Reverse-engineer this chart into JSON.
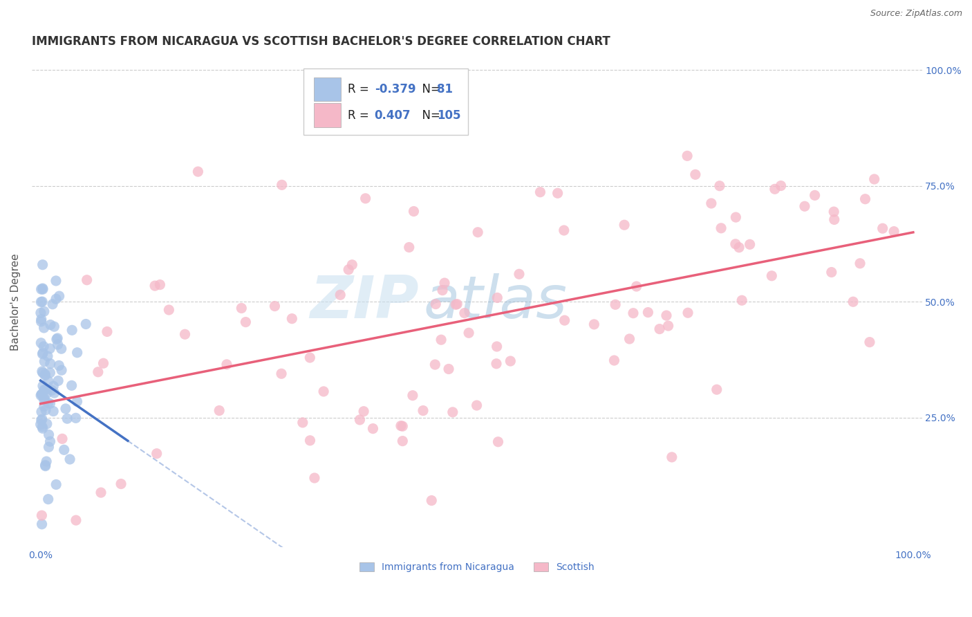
{
  "title": "IMMIGRANTS FROM NICARAGUA VS SCOTTISH BACHELOR'S DEGREE CORRELATION CHART",
  "source": "Source: ZipAtlas.com",
  "ylabel": "Bachelor's Degree",
  "watermark_zip": "ZIP",
  "watermark_atlas": "atlas",
  "xlim": [
    0.0,
    100.0
  ],
  "ylim": [
    0.0,
    100.0
  ],
  "xtick_positions": [
    0,
    100
  ],
  "xtick_labels": [
    "0.0%",
    "100.0%"
  ],
  "ytick_positions": [
    25,
    50,
    75,
    100
  ],
  "ytick_labels": [
    "25.0%",
    "50.0%",
    "75.0%",
    "100.0%"
  ],
  "legend_r1": "-0.379",
  "legend_n1": "81",
  "legend_r2": "0.407",
  "legend_n2": "105",
  "color_blue_fill": "#a8c4e8",
  "color_pink_fill": "#f5b8c8",
  "color_blue_line": "#4472c4",
  "color_pink_line": "#e8607a",
  "tick_color": "#4472c4",
  "title_color": "#333333",
  "ylabel_color": "#555555",
  "grid_color": "#cccccc",
  "background": "#ffffff",
  "title_fontsize": 12,
  "tick_fontsize": 10,
  "legend_fontsize": 12,
  "ylabel_fontsize": 11,
  "source_fontsize": 9,
  "blue_trend_x": [
    0,
    10
  ],
  "blue_trend_y": [
    33,
    20
  ],
  "pink_trend_x": [
    0,
    100
  ],
  "pink_trend_y": [
    28,
    65
  ],
  "blue_seed": 42,
  "pink_seed": 7,
  "n_blue": 81,
  "n_pink": 105
}
